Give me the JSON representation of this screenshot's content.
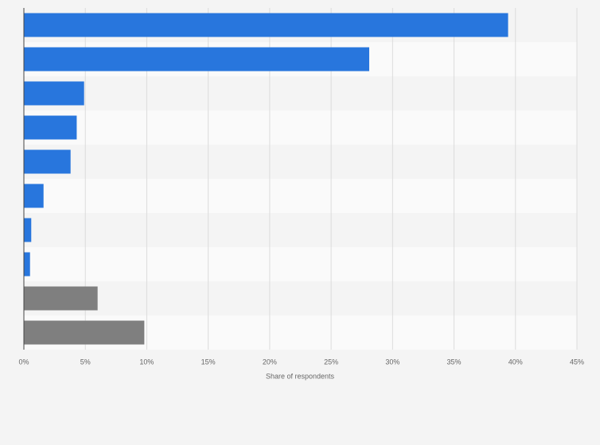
{
  "chart_data": {
    "type": "bar",
    "orientation": "horizontal",
    "x_label": "Share of respondents",
    "categories": [
      null,
      null,
      null,
      null,
      null,
      null,
      null,
      null,
      null,
      null
    ],
    "values": [
      39.4,
      28.1,
      4.9,
      4.3,
      3.8,
      1.6,
      0.6,
      0.5,
      6.0,
      9.8
    ],
    "colors": [
      "#2876dd",
      "#2876dd",
      "#2876dd",
      "#2876dd",
      "#2876dd",
      "#2876dd",
      "#2876dd",
      "#2876dd",
      "#7f7f7f",
      "#7f7f7f"
    ],
    "xlim": [
      0,
      45
    ],
    "xticks": [
      {
        "value": 0,
        "label": "0%"
      },
      {
        "value": 5,
        "label": "5%"
      },
      {
        "value": 10,
        "label": "10%"
      },
      {
        "value": 15,
        "label": "15%"
      },
      {
        "value": 20,
        "label": "20%"
      },
      {
        "value": 25,
        "label": "25%"
      },
      {
        "value": 30,
        "label": "30%"
      },
      {
        "value": 35,
        "label": "35%"
      },
      {
        "value": 40,
        "label": "40%"
      },
      {
        "value": 45,
        "label": "45%"
      }
    ],
    "grid": true
  }
}
